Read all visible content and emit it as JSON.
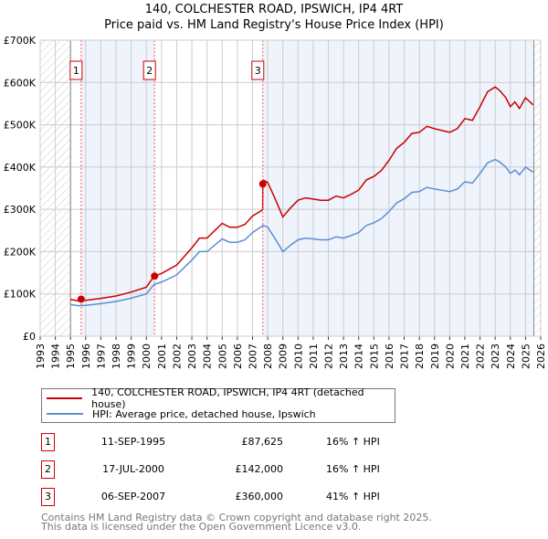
{
  "title": "140, COLCHESTER ROAD, IPSWICH, IP4 4RT",
  "subtitle": "Price paid vs. HM Land Registry's House Price Index (HPI)",
  "chart_data": {
    "type": "line",
    "title": "140, COLCHESTER ROAD, IPSWICH, IP4 4RT",
    "subtitle": "Price paid vs. HM Land Registry's House Price Index (HPI)",
    "xlim": [
      1993,
      2026
    ],
    "ylim": [
      0,
      700000
    ],
    "x_ticks": [
      "1993",
      "1994",
      "1995",
      "1996",
      "1997",
      "1998",
      "1999",
      "2000",
      "2001",
      "2002",
      "2003",
      "2004",
      "2005",
      "2006",
      "2007",
      "2008",
      "2009",
      "2010",
      "2011",
      "2012",
      "2013",
      "2014",
      "2015",
      "2016",
      "2017",
      "2018",
      "2019",
      "2020",
      "2021",
      "2022",
      "2023",
      "2024",
      "2025",
      "2026"
    ],
    "y_ticks": [
      {
        "v": 0,
        "label": "£0"
      },
      {
        "v": 100000,
        "label": "£100K"
      },
      {
        "v": 200000,
        "label": "£200K"
      },
      {
        "v": 300000,
        "label": "£300K"
      },
      {
        "v": 400000,
        "label": "£400K"
      },
      {
        "v": 500000,
        "label": "£500K"
      },
      {
        "v": 600000,
        "label": "£600K"
      },
      {
        "v": 700000,
        "label": "£700K"
      }
    ],
    "grid": true,
    "colors": {
      "property": "#cc0000",
      "hpi": "#5b8fd4",
      "shade": "#eef3fc"
    },
    "hpi_series": {
      "name": "HPI: Average price, detached house, Ipswich",
      "x": [
        1995.0,
        1995.5,
        1996,
        1997,
        1998,
        1999,
        2000,
        2000.5,
        2001,
        2002,
        2003,
        2003.5,
        2004,
        2004.5,
        2005,
        2005.5,
        2006,
        2006.5,
        2007,
        2007.7,
        2008,
        2008.5,
        2009,
        2009.5,
        2010,
        2010.5,
        2011,
        2011.5,
        2012,
        2012.5,
        2013,
        2013.5,
        2014,
        2014.5,
        2015,
        2015.5,
        2016,
        2016.5,
        2017,
        2017.5,
        2018,
        2018.5,
        2019,
        2019.5,
        2020,
        2020.5,
        2021,
        2021.5,
        2022,
        2022.5,
        2023,
        2023.3,
        2023.7,
        2024,
        2024.3,
        2024.6,
        2025,
        2025.5
      ],
      "y": [
        75000,
        72000,
        73000,
        77000,
        82000,
        90000,
        100000,
        122000,
        128000,
        145000,
        180000,
        200000,
        200000,
        215000,
        230000,
        222000,
        222000,
        228000,
        245000,
        262000,
        258000,
        230000,
        200000,
        215000,
        228000,
        232000,
        230000,
        228000,
        228000,
        235000,
        232000,
        238000,
        245000,
        262000,
        268000,
        278000,
        295000,
        315000,
        325000,
        340000,
        342000,
        352000,
        348000,
        345000,
        342000,
        348000,
        365000,
        362000,
        385000,
        410000,
        418000,
        412000,
        400000,
        385000,
        393000,
        382000,
        400000,
        388000
      ]
    },
    "property_series": {
      "name": "140, COLCHESTER ROAD, IPSWICH, IP4 4RT (detached house)",
      "ratio_before_2007": 1.16,
      "ratio_after_2007": 1.41
    },
    "sales": [
      {
        "n": "1",
        "x": 1995.7,
        "date": "11-SEP-1995",
        "price": 87625,
        "price_label": "£87,625",
        "hpi": "16% ↑ HPI"
      },
      {
        "n": "2",
        "x": 2000.54,
        "date": "17-JUL-2000",
        "price": 142000,
        "price_label": "£142,000",
        "hpi": "16% ↑ HPI"
      },
      {
        "n": "3",
        "x": 2007.68,
        "date": "06-SEP-2007",
        "price": 360000,
        "price_label": "£360,000",
        "hpi": "41% ↑ HPI"
      }
    ],
    "legend_position": "below"
  },
  "legend": {
    "property": "140, COLCHESTER ROAD, IPSWICH, IP4 4RT (detached house)",
    "hpi": "HPI: Average price, detached house, Ipswich"
  },
  "footer": {
    "line1": "Contains HM Land Registry data © Crown copyright and database right 2025.",
    "line2": "This data is licensed under the Open Government Licence v3.0."
  }
}
